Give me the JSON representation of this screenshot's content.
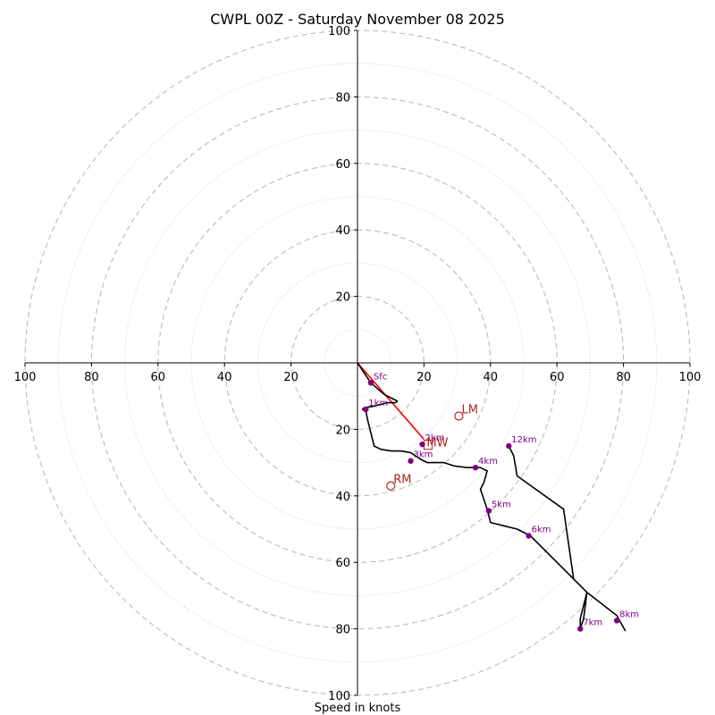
{
  "chart_data": {
    "type": "hodograph",
    "title": "CWPL 00Z - Saturday November 08 2025",
    "xlabel": "Speed in knots",
    "axis_range": [
      -100,
      100
    ],
    "ring_major": [
      20,
      40,
      60,
      80,
      100
    ],
    "ring_minor": [
      10,
      30,
      50,
      70,
      90
    ],
    "tick_labels": {
      "x_left": [
        "100",
        "80",
        "60",
        "40",
        "20"
      ],
      "x_right": [
        "20",
        "40",
        "60",
        "80",
        "100"
      ],
      "y_up": [
        "20",
        "40",
        "60",
        "80",
        "100"
      ],
      "y_down": [
        "20",
        "40",
        "60",
        "80",
        "100"
      ]
    },
    "hodograph_trace": [
      [
        0,
        0
      ],
      [
        4,
        -6
      ],
      [
        8,
        -9.5
      ],
      [
        11,
        -11
      ],
      [
        12,
        -11.5
      ],
      [
        11.5,
        -12
      ],
      [
        9,
        -12
      ],
      [
        7,
        -12.5
      ],
      [
        5,
        -13
      ],
      [
        2,
        -13.5
      ],
      [
        1.5,
        -14
      ],
      [
        2.5,
        -14.5
      ],
      [
        3,
        -17
      ],
      [
        4,
        -21
      ],
      [
        5,
        -25
      ],
      [
        7,
        -26
      ],
      [
        10,
        -26.5
      ],
      [
        13,
        -26.5
      ],
      [
        16,
        -27
      ],
      [
        19,
        -29
      ],
      [
        21,
        -30
      ],
      [
        26,
        -30
      ],
      [
        29,
        -31
      ],
      [
        33,
        -31.5
      ],
      [
        37,
        -31.5
      ],
      [
        39,
        -32.5
      ],
      [
        38,
        -36
      ],
      [
        37,
        -38
      ],
      [
        39,
        -44
      ],
      [
        40,
        -48
      ],
      [
        44,
        -49
      ],
      [
        48,
        -50
      ],
      [
        52,
        -52
      ],
      [
        65,
        -65
      ],
      [
        69,
        -69
      ],
      [
        67,
        -77
      ],
      [
        67,
        -80
      ],
      [
        68,
        -77
      ],
      [
        69,
        -69
      ],
      [
        78,
        -76
      ],
      [
        80.5,
        -80.5
      ],
      [
        78,
        -76
      ],
      [
        69,
        -69
      ],
      [
        65,
        -65
      ],
      [
        62,
        -44
      ],
      [
        48,
        -34
      ],
      [
        47,
        -28
      ],
      [
        45.5,
        -25
      ]
    ],
    "shear_line": [
      [
        0,
        0
      ],
      [
        20,
        -23
      ]
    ],
    "height_markers": [
      {
        "label": "Sfc",
        "u": 4,
        "v": -6
      },
      {
        "label": "1km",
        "u": 2.5,
        "v": -14
      },
      {
        "label": "2km",
        "u": 19.5,
        "v": -24.5
      },
      {
        "label": "3km",
        "u": 16,
        "v": -29.5
      },
      {
        "label": "4km",
        "u": 35.5,
        "v": -31.5
      },
      {
        "label": "5km",
        "u": 39.5,
        "v": -44.5
      },
      {
        "label": "6km",
        "u": 51.5,
        "v": -52
      },
      {
        "label": "7km",
        "u": 67,
        "v": -80
      },
      {
        "label": "8km",
        "u": 78,
        "v": -77.5
      },
      {
        "label": "12km",
        "u": 45.5,
        "v": -25
      }
    ],
    "storm_motion": [
      {
        "label": "LM",
        "u": 30.5,
        "v": -16,
        "marker": "circle"
      },
      {
        "label": "RM",
        "u": 10,
        "v": -37,
        "marker": "circle"
      },
      {
        "label": "MW",
        "u": 20,
        "v": -26,
        "marker": "square"
      }
    ],
    "colors": {
      "trace": "#000000",
      "shear": "#ff0000",
      "height_marker": "#800080",
      "storm_motion": "#b22222",
      "grid": "#bbbbbb"
    }
  }
}
